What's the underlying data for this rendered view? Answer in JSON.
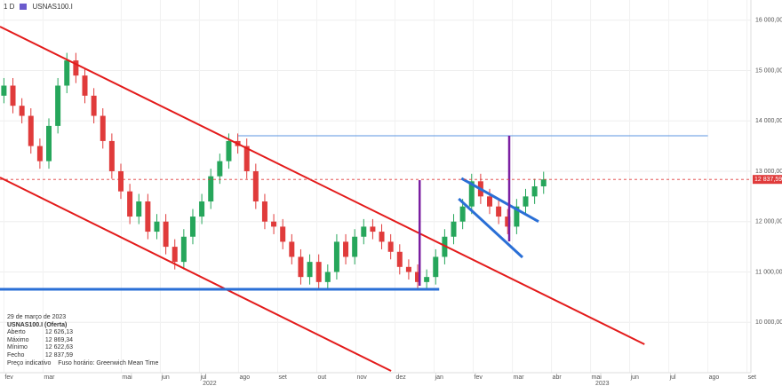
{
  "header": {
    "interval": "1 D",
    "symbol": "USNAS100.I"
  },
  "info": {
    "date": "29 de março de 2023",
    "instrument": "USNAS100.I (Oferta)",
    "rows": [
      [
        "Aberto",
        "12 626,13"
      ],
      [
        "Máximo",
        "12 869,34"
      ],
      [
        "Mínimo",
        "12 622,63"
      ],
      [
        "Fecho",
        "12 837,59"
      ]
    ],
    "footer": "Preço indicativo    Fuso horário: Greenwich Mean Time"
  },
  "chart_data": {
    "type": "candlestick",
    "grid": true,
    "xlim": [
      -0.1,
      19.1
    ],
    "ylim": [
      9000,
      16400
    ],
    "xticks": [
      {
        "value": 0,
        "label": "fev"
      },
      {
        "value": 1,
        "label": "mar"
      },
      {
        "value": 3,
        "label": "mai"
      },
      {
        "value": 4,
        "label": "jun"
      },
      {
        "value": 5,
        "label": "jul"
      },
      {
        "value": 6,
        "label": "ago"
      },
      {
        "value": 7,
        "label": "set"
      },
      {
        "value": 8,
        "label": "out"
      },
      {
        "value": 9,
        "label": "nov"
      },
      {
        "value": 10,
        "label": "dez"
      },
      {
        "value": 11,
        "label": "jan"
      },
      {
        "value": 12,
        "label": "fev"
      },
      {
        "value": 13,
        "label": "mar"
      },
      {
        "value": 14,
        "label": "abr"
      },
      {
        "value": 15,
        "label": "mai"
      },
      {
        "value": 16,
        "label": "jun"
      },
      {
        "value": 17,
        "label": "jul"
      },
      {
        "value": 18,
        "label": "ago"
      },
      {
        "value": 19,
        "label": "set"
      }
    ],
    "year_ticks": [
      {
        "value": 5.26,
        "label": "2022"
      },
      {
        "value": 15.3,
        "label": "2023"
      }
    ],
    "yticks": [
      {
        "value": 10000,
        "label": "10 000,00"
      },
      {
        "value": 11000,
        "label": "11 000,00"
      },
      {
        "value": 12000,
        "label": "12 000,00"
      },
      {
        "value": 13000,
        "label": "13 000,00"
      },
      {
        "value": 14000,
        "label": "14 000,00"
      },
      {
        "value": 15000,
        "label": "15 000,00"
      },
      {
        "value": 16000,
        "label": "16 000,00"
      }
    ],
    "last_price": {
      "value": 12837.59,
      "label": "12 837,59",
      "color": "#e03b3b"
    },
    "up_color": "#26a65b",
    "down_color": "#e03b3b",
    "x": [
      0,
      0.23,
      0.46,
      0.69,
      0.92,
      1.15,
      1.38,
      1.61,
      1.84,
      2.07,
      2.3,
      2.53,
      2.76,
      2.99,
      3.22,
      3.45,
      3.68,
      3.91,
      4.14,
      4.37,
      4.6,
      4.83,
      5.06,
      5.29,
      5.52,
      5.75,
      5.98,
      6.21,
      6.44,
      6.67,
      6.9,
      7.13,
      7.36,
      7.59,
      7.82,
      8.05,
      8.28,
      8.51,
      8.74,
      8.97,
      9.2,
      9.43,
      9.66,
      9.89,
      10.12,
      10.35,
      10.58,
      10.81,
      11.04,
      11.27,
      11.5,
      11.73,
      11.96,
      12.19,
      12.42,
      12.65,
      12.88,
      13.11,
      13.34,
      13.57,
      13.8
    ],
    "open": [
      14500,
      14700,
      14300,
      14100,
      13500,
      13200,
      13900,
      14700,
      15200,
      14900,
      14500,
      14100,
      13600,
      13000,
      12600,
      12100,
      12400,
      11800,
      12000,
      11500,
      11200,
      11700,
      12100,
      12400,
      12900,
      13200,
      13600,
      13500,
      13000,
      12400,
      12000,
      11900,
      11600,
      11300,
      10900,
      11200,
      10800,
      11000,
      11600,
      11300,
      11700,
      11900,
      11800,
      11600,
      11400,
      11100,
      11000,
      10800,
      10900,
      11300,
      11700,
      12000,
      12300,
      12800,
      12500,
      12300,
      12100,
      11900,
      12300,
      12500,
      12700
    ],
    "high": [
      14850,
      14850,
      14450,
      14250,
      13650,
      14050,
      14850,
      15350,
      15350,
      15050,
      14650,
      14250,
      13750,
      13150,
      12750,
      12550,
      12550,
      12150,
      12150,
      11650,
      11850,
      12250,
      12550,
      13050,
      13350,
      13750,
      13750,
      13650,
      13150,
      12550,
      12150,
      12050,
      11750,
      11450,
      11350,
      11350,
      11150,
      11750,
      11750,
      11850,
      12050,
      12050,
      11950,
      11750,
      11550,
      11250,
      11150,
      11050,
      11450,
      11850,
      12150,
      12450,
      12950,
      12950,
      12650,
      12450,
      12250,
      12450,
      12650,
      12850,
      12990
    ],
    "low": [
      14350,
      14150,
      13950,
      13350,
      13050,
      13050,
      13750,
      14550,
      14750,
      14350,
      13950,
      13450,
      12850,
      12450,
      11950,
      11950,
      11650,
      11650,
      11350,
      11050,
      11050,
      11550,
      11950,
      12250,
      12750,
      13050,
      13350,
      12850,
      12250,
      11850,
      11750,
      11450,
      11150,
      10750,
      10750,
      10650,
      10650,
      10850,
      11150,
      11150,
      11550,
      11650,
      11450,
      11250,
      10950,
      10850,
      10650,
      10650,
      10750,
      11150,
      11550,
      11850,
      12150,
      12350,
      12150,
      11950,
      11750,
      11750,
      12150,
      12350,
      12550
    ],
    "close": [
      14700,
      14300,
      14100,
      13500,
      13200,
      13900,
      14700,
      15200,
      14900,
      14500,
      14100,
      13600,
      13000,
      12600,
      12100,
      12400,
      11800,
      12000,
      11500,
      11200,
      11700,
      12100,
      12400,
      12900,
      13200,
      13600,
      13500,
      13000,
      12400,
      12000,
      11900,
      11600,
      11300,
      10900,
      11200,
      10800,
      11000,
      11600,
      11300,
      11700,
      11900,
      11800,
      11600,
      11400,
      11100,
      11000,
      10800,
      10900,
      11300,
      11700,
      12000,
      12300,
      12800,
      12500,
      12300,
      12100,
      11900,
      12300,
      12500,
      12700,
      12837.59
    ],
    "drawings": [
      {
        "color": "#e31b1b",
        "width": 2,
        "x": [
          -0.1,
          16.38
        ],
        "y": [
          15871,
          9564
        ]
      },
      {
        "color": "#e31b1b",
        "width": 2,
        "x": [
          -0.1,
          9.9
        ],
        "y": [
          12876,
          9035
        ]
      },
      {
        "color": "#2a6fd6",
        "width": 3,
        "x": [
          -0.1,
          11.13
        ],
        "y": [
          10656,
          10656
        ]
      },
      {
        "color": "#5b95e0",
        "width": 1,
        "x": [
          5.99,
          18.0
        ],
        "y": [
          13704,
          13704
        ]
      },
      {
        "color": "#2a6fd6",
        "width": 3,
        "x": [
          11.7,
          13.67
        ],
        "y": [
          12858,
          12000
        ]
      },
      {
        "color": "#2a6fd6",
        "width": 3,
        "x": [
          11.63,
          13.26
        ],
        "y": [
          12454,
          11290
        ]
      },
      {
        "color": "#7b1fa2",
        "width": 2.5,
        "x": [
          10.63,
          10.63
        ],
        "y": [
          12823,
          10727
        ]
      },
      {
        "color": "#7b1fa2",
        "width": 2.5,
        "x": [
          12.92,
          12.92
        ],
        "y": [
          13704,
          11607
        ]
      }
    ]
  }
}
